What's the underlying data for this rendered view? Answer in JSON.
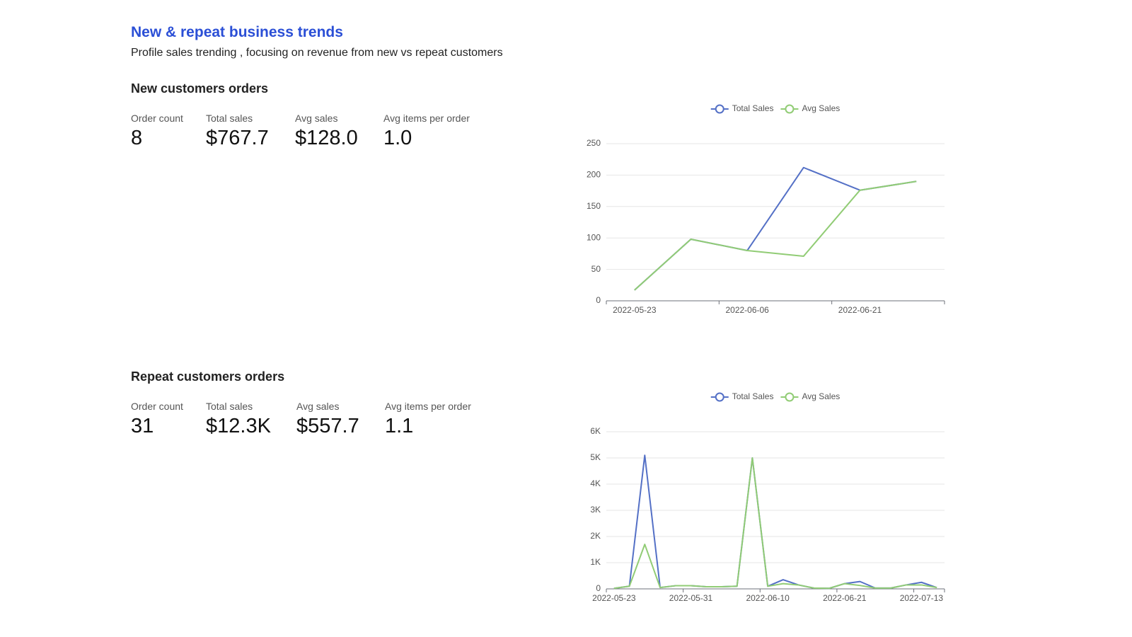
{
  "header": {
    "title": "New & repeat business trends",
    "subtitle": "Profile sales trending , focusing on revenue from new vs repeat customers"
  },
  "sections": [
    {
      "title": "New customers orders",
      "stats": [
        {
          "label": "Order count",
          "value": "8"
        },
        {
          "label": "Total sales",
          "value": "$767.7"
        },
        {
          "label": "Avg sales",
          "value": "$128.0"
        },
        {
          "label": "Avg items per order",
          "value": "1.0"
        }
      ]
    },
    {
      "title": "Repeat customers orders",
      "stats": [
        {
          "label": "Order count",
          "value": "31"
        },
        {
          "label": "Total sales",
          "value": "$12.3K"
        },
        {
          "label": "Avg sales",
          "value": "$557.7"
        },
        {
          "label": "Avg items per order",
          "value": "1.1"
        }
      ]
    }
  ],
  "chart_data": [
    {
      "type": "line",
      "categories": [
        "2022-05-23",
        null,
        "2022-06-06",
        null,
        "2022-06-21",
        null
      ],
      "series": [
        {
          "name": "Total Sales",
          "color": "#5470c6",
          "values": [
            17,
            98,
            80,
            212,
            176,
            190
          ]
        },
        {
          "name": "Avg Sales",
          "color": "#91cc75",
          "values": [
            17,
            98,
            80,
            71,
            176,
            190
          ]
        }
      ],
      "ylim": [
        0,
        250
      ],
      "yticks": [
        0,
        50,
        100,
        150,
        200,
        250
      ],
      "grid": true,
      "legend": "top"
    },
    {
      "type": "line",
      "categories": [
        "2022-05-23",
        null,
        null,
        null,
        null,
        "2022-05-31",
        null,
        null,
        null,
        null,
        "2022-06-10",
        null,
        null,
        null,
        null,
        "2022-06-21",
        null,
        null,
        null,
        null,
        "2022-07-13",
        null
      ],
      "series": [
        {
          "name": "Total Sales",
          "color": "#5470c6",
          "values": [
            20,
            100,
            5100,
            50,
            120,
            120,
            80,
            80,
            100,
            5000,
            100,
            350,
            150,
            30,
            20,
            200,
            280,
            30,
            30,
            150,
            250,
            50
          ]
        },
        {
          "name": "Avg Sales",
          "color": "#91cc75",
          "values": [
            20,
            100,
            1700,
            50,
            120,
            120,
            80,
            80,
            100,
            5000,
            100,
            200,
            150,
            30,
            20,
            200,
            130,
            30,
            30,
            150,
            150,
            50
          ]
        }
      ],
      "ylim": [
        0,
        6000
      ],
      "yticks": [
        0,
        {
          "value": 1000,
          "label": "1K"
        },
        {
          "value": 2000,
          "label": "2K"
        },
        {
          "value": 3000,
          "label": "3K"
        },
        {
          "value": 4000,
          "label": "4K"
        },
        {
          "value": 5000,
          "label": "5K"
        },
        {
          "value": 6000,
          "label": "6K"
        }
      ],
      "grid": true,
      "legend": "top"
    }
  ]
}
